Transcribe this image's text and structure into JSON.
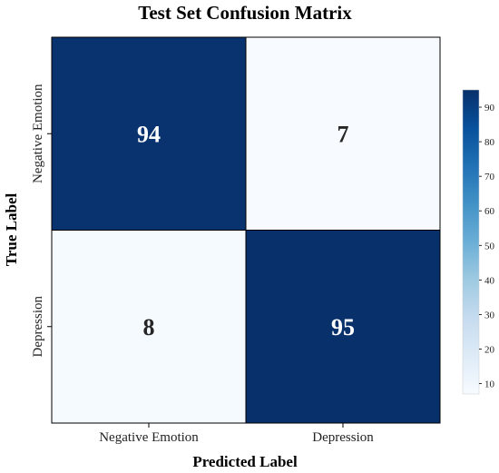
{
  "chart_data": {
    "type": "heatmap",
    "title": "Test Set Confusion Matrix",
    "xlabel": "Predicted Label",
    "ylabel": "True Label",
    "x_categories": [
      "Negative Emotion",
      "Depression"
    ],
    "y_categories": [
      "Negative Emotion",
      "Depression"
    ],
    "matrix": [
      [
        94,
        7
      ],
      [
        8,
        95
      ]
    ],
    "colormap": "Blues",
    "colorbar": {
      "range": [
        7,
        95
      ],
      "ticks": [
        10,
        20,
        30,
        40,
        50,
        60,
        70,
        80,
        90
      ],
      "low_color": "#f7fbff",
      "high_color": "#08306b"
    },
    "grid": false
  }
}
